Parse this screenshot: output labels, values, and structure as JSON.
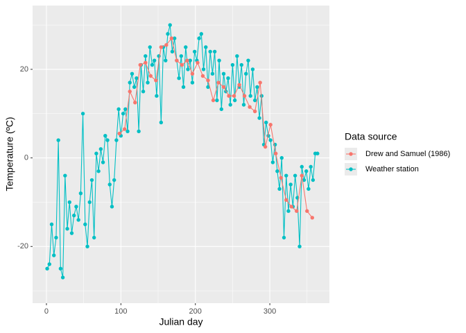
{
  "chart_data": {
    "type": "line",
    "x_label": "Julian day",
    "y_label": "Temperature (ºC)",
    "legend_title": "Data source",
    "legend_position": "right",
    "grid": true,
    "xlim": [
      -18.6,
      380
    ],
    "xticks": [
      0,
      100,
      200,
      300
    ],
    "ylim": [
      -32.8,
      34.4
    ],
    "yticks": [
      -20,
      0,
      20
    ],
    "series": [
      {
        "name": "Drew and Samuel (1986)",
        "color": "#F8766D",
        "x": [
          98,
          105,
          112,
          119,
          126,
          133,
          140,
          147,
          154,
          161,
          168,
          175,
          182,
          189,
          196,
          203,
          210,
          217,
          224,
          231,
          238,
          245,
          252,
          259,
          266,
          273,
          280,
          287,
          294,
          301,
          308,
          315,
          322,
          329,
          336,
          343,
          350,
          357
        ],
        "values": [
          5.5,
          6.5,
          15,
          12.5,
          21,
          21.5,
          18.5,
          17.5,
          25,
          25.5,
          27,
          22,
          21,
          22,
          19,
          21.5,
          18.5,
          17.5,
          13,
          17,
          16,
          14,
          14,
          16.5,
          14,
          11.5,
          10.5,
          17,
          2.5,
          7.5,
          1,
          -4.5,
          -9.5,
          -11,
          -12,
          -4,
          -12,
          -13.5
        ]
      },
      {
        "name": "Weather station",
        "color": "#00BFC4",
        "x": [
          1,
          4,
          7,
          10,
          13,
          16,
          19,
          22,
          25,
          28,
          31,
          34,
          37,
          40,
          43,
          46,
          49,
          52,
          55,
          58,
          61,
          64,
          67,
          70,
          73,
          76,
          79,
          82,
          85,
          88,
          91,
          94,
          97,
          100,
          103,
          106,
          109,
          112,
          115,
          118,
          121,
          124,
          127,
          130,
          133,
          136,
          139,
          142,
          145,
          148,
          151,
          154,
          157,
          160,
          163,
          166,
          169,
          172,
          175,
          178,
          181,
          184,
          187,
          190,
          193,
          196,
          199,
          202,
          205,
          208,
          211,
          214,
          217,
          220,
          223,
          226,
          229,
          232,
          235,
          238,
          241,
          244,
          247,
          250,
          253,
          256,
          259,
          262,
          265,
          268,
          271,
          274,
          277,
          280,
          283,
          286,
          289,
          292,
          295,
          298,
          301,
          304,
          307,
          310,
          313,
          316,
          319,
          322,
          325,
          328,
          331,
          334,
          337,
          340,
          343,
          346,
          349,
          352,
          355,
          358,
          361,
          364
        ],
        "values": [
          -25,
          -24,
          -15,
          -22,
          -18,
          4,
          -25,
          -27,
          -4,
          -16,
          -10,
          -17,
          -13,
          -11,
          -14,
          -8,
          10,
          -15,
          -20,
          -10,
          -5,
          -18,
          1,
          -3,
          2,
          -1,
          5,
          4,
          -6,
          -11,
          -5,
          4,
          11,
          5,
          10,
          11,
          6,
          17,
          19,
          16,
          18,
          6,
          21,
          15,
          23,
          17,
          25,
          21,
          22,
          14,
          23,
          8,
          25,
          22,
          28,
          30,
          24,
          27,
          22,
          18,
          23,
          16,
          25,
          20,
          22,
          17,
          24,
          22,
          27,
          28,
          20,
          25,
          16,
          24,
          19,
          24,
          13,
          22,
          11,
          19,
          15,
          18,
          12,
          21,
          13,
          23,
          16,
          21,
          12,
          19,
          22,
          14,
          20,
          13,
          16,
          9,
          14,
          3,
          8,
          5,
          4,
          -1,
          3,
          -3,
          -7,
          0,
          -18,
          -4,
          -12,
          -6,
          -11,
          -4,
          -9,
          -20,
          -2,
          -5,
          -3,
          -7,
          -2,
          -5,
          1,
          1
        ]
      }
    ]
  }
}
